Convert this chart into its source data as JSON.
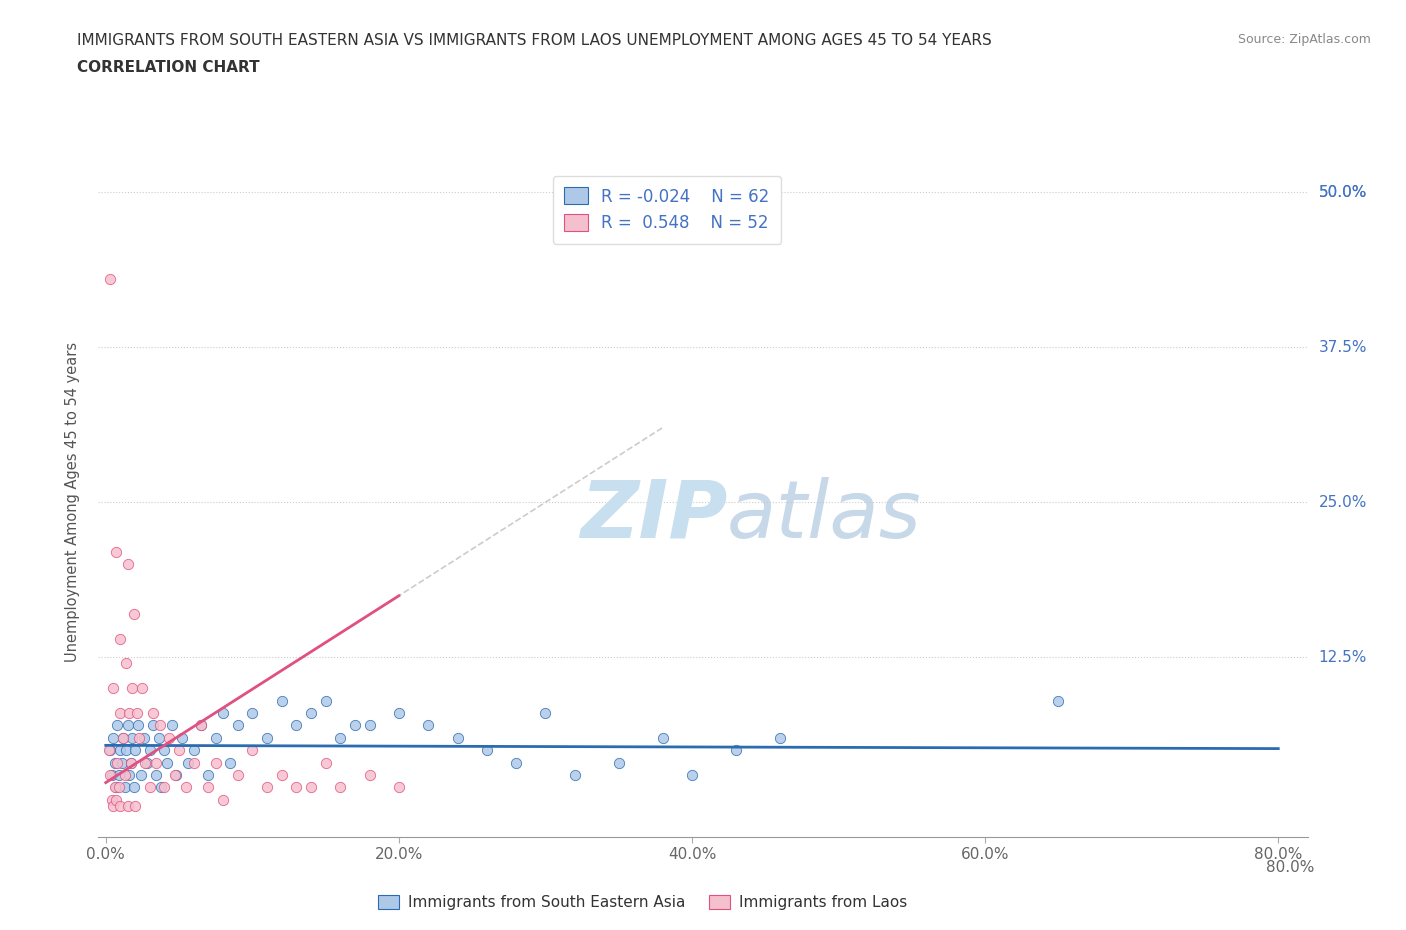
{
  "title_line1": "IMMIGRANTS FROM SOUTH EASTERN ASIA VS IMMIGRANTS FROM LAOS UNEMPLOYMENT AMONG AGES 45 TO 54 YEARS",
  "title_line2": "CORRELATION CHART",
  "source": "Source: ZipAtlas.com",
  "ylabel": "Unemployment Among Ages 45 to 54 years",
  "xlim": [
    -0.005,
    0.82
  ],
  "ylim": [
    -0.02,
    0.52
  ],
  "xtick_vals": [
    0.0,
    0.2,
    0.4,
    0.6,
    0.8
  ],
  "xtick_labels": [
    "0.0%",
    "",
    "",
    "",
    ""
  ],
  "ytick_vals": [
    0.0,
    0.125,
    0.25,
    0.375,
    0.5
  ],
  "ytick_right_labels": [
    "",
    "12.5%",
    "25.0%",
    "37.5%",
    "50.0%"
  ],
  "xlabel_labels": [
    "0.0%",
    "20.0%",
    "40.0%",
    "60.0%",
    "80.0%"
  ],
  "bottom_right_label": "80.0%",
  "legend_label1": "Immigrants from South Eastern Asia",
  "legend_label2": "Immigrants from Laos",
  "R1": -0.024,
  "N1": 62,
  "R2": 0.548,
  "N2": 52,
  "color_blue_fill": "#aec8e8",
  "color_blue_edge": "#2b6cb0",
  "color_blue_line": "#2b6cb0",
  "color_pink_fill": "#f5c0cd",
  "color_pink_edge": "#e05080",
  "color_pink_line": "#e05080",
  "color_dashed": "#cccccc",
  "watermark_color": "#c8dff0",
  "blue_scatter_x": [
    0.003,
    0.004,
    0.005,
    0.006,
    0.007,
    0.008,
    0.009,
    0.01,
    0.011,
    0.012,
    0.013,
    0.014,
    0.015,
    0.016,
    0.017,
    0.018,
    0.019,
    0.02,
    0.022,
    0.024,
    0.026,
    0.028,
    0.03,
    0.032,
    0.034,
    0.036,
    0.038,
    0.04,
    0.042,
    0.045,
    0.048,
    0.052,
    0.056,
    0.06,
    0.065,
    0.07,
    0.075,
    0.08,
    0.085,
    0.09,
    0.1,
    0.11,
    0.12,
    0.13,
    0.14,
    0.15,
    0.16,
    0.17,
    0.18,
    0.2,
    0.22,
    0.24,
    0.26,
    0.28,
    0.3,
    0.32,
    0.35,
    0.38,
    0.4,
    0.43,
    0.46,
    0.65
  ],
  "blue_scatter_y": [
    0.05,
    0.03,
    0.06,
    0.04,
    0.02,
    0.07,
    0.03,
    0.05,
    0.04,
    0.06,
    0.02,
    0.05,
    0.07,
    0.03,
    0.04,
    0.06,
    0.02,
    0.05,
    0.07,
    0.03,
    0.06,
    0.04,
    0.05,
    0.07,
    0.03,
    0.06,
    0.02,
    0.05,
    0.04,
    0.07,
    0.03,
    0.06,
    0.04,
    0.05,
    0.07,
    0.03,
    0.06,
    0.08,
    0.04,
    0.07,
    0.08,
    0.06,
    0.09,
    0.07,
    0.08,
    0.09,
    0.06,
    0.07,
    0.07,
    0.08,
    0.07,
    0.06,
    0.05,
    0.04,
    0.08,
    0.03,
    0.04,
    0.06,
    0.03,
    0.05,
    0.06,
    0.09
  ],
  "pink_scatter_x": [
    0.002,
    0.003,
    0.004,
    0.005,
    0.005,
    0.006,
    0.007,
    0.007,
    0.008,
    0.009,
    0.01,
    0.01,
    0.01,
    0.012,
    0.013,
    0.014,
    0.015,
    0.015,
    0.016,
    0.017,
    0.018,
    0.019,
    0.02,
    0.021,
    0.023,
    0.025,
    0.027,
    0.03,
    0.032,
    0.034,
    0.037,
    0.04,
    0.043,
    0.047,
    0.05,
    0.055,
    0.06,
    0.065,
    0.07,
    0.075,
    0.08,
    0.09,
    0.1,
    0.11,
    0.12,
    0.13,
    0.14,
    0.15,
    0.16,
    0.18,
    0.2,
    0.003
  ],
  "pink_scatter_y": [
    0.05,
    0.03,
    0.01,
    0.005,
    0.1,
    0.02,
    0.01,
    0.21,
    0.04,
    0.02,
    0.005,
    0.08,
    0.14,
    0.06,
    0.03,
    0.12,
    0.005,
    0.2,
    0.08,
    0.04,
    0.1,
    0.16,
    0.005,
    0.08,
    0.06,
    0.1,
    0.04,
    0.02,
    0.08,
    0.04,
    0.07,
    0.02,
    0.06,
    0.03,
    0.05,
    0.02,
    0.04,
    0.07,
    0.02,
    0.04,
    0.01,
    0.03,
    0.05,
    0.02,
    0.03,
    0.02,
    0.02,
    0.04,
    0.02,
    0.03,
    0.02,
    0.43
  ]
}
